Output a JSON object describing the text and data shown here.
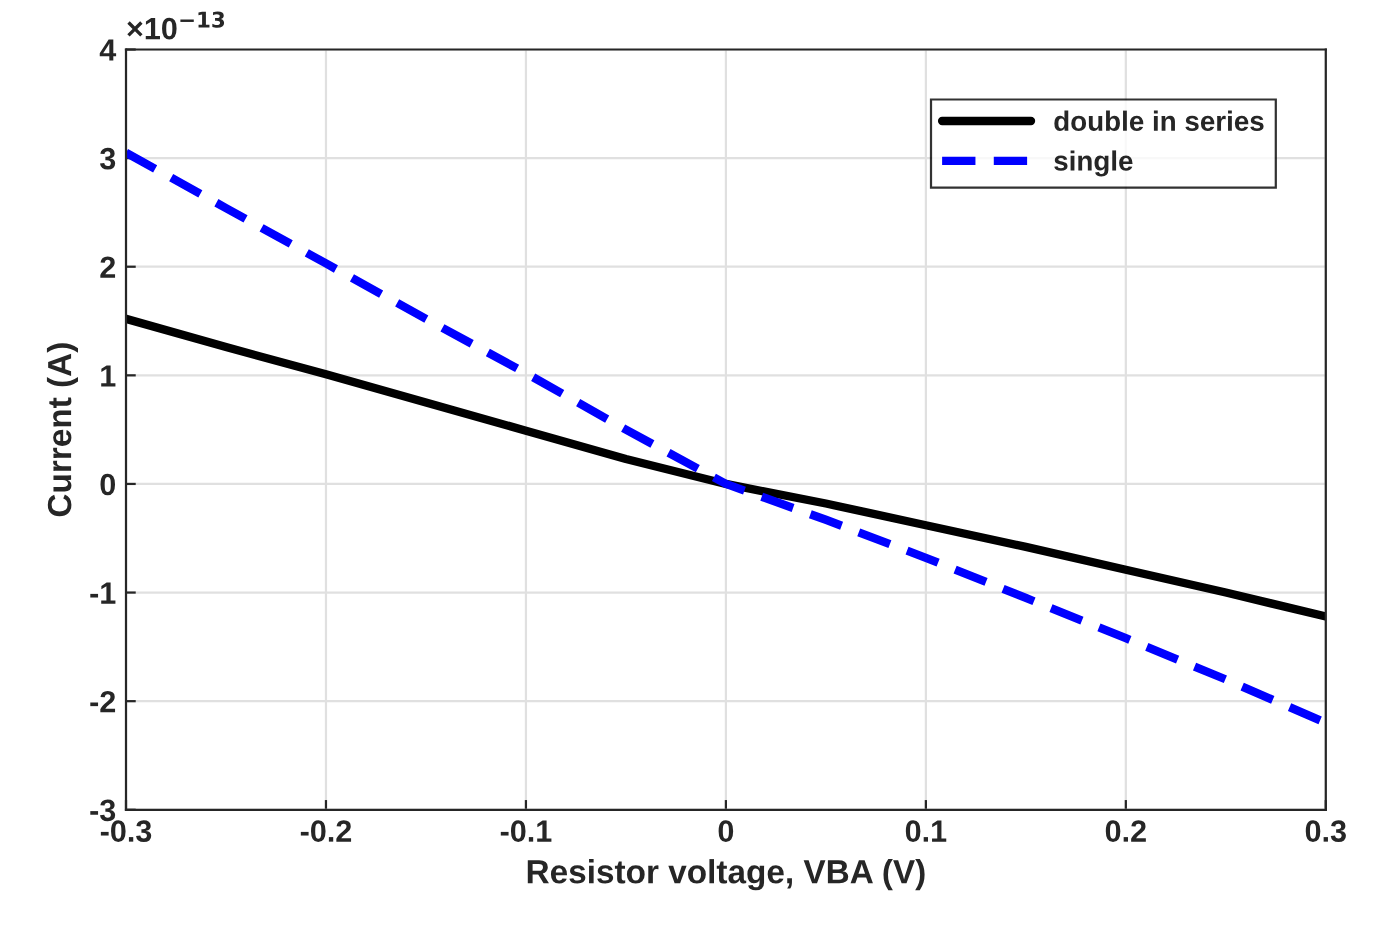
{
  "chart_data": {
    "type": "line",
    "xlabel": "Resistor voltage, VBA (V)",
    "ylabel": "Current (A)",
    "annotations": [
      "×10$^{−13}$"
    ],
    "x": [
      -0.3,
      -0.25,
      -0.2,
      -0.15,
      -0.1,
      -0.05,
      0,
      0.05,
      0.1,
      0.15,
      0.2,
      0.25,
      0.3
    ],
    "series": [
      {
        "name": "double in series",
        "color": "#000000",
        "line_style": "solid",
        "values": [
          1.52,
          1.26,
          1.01,
          0.75,
          0.49,
          0.23,
          0,
          -0.18,
          -0.38,
          -0.58,
          -0.79,
          -1.0,
          -1.22
        ]
      },
      {
        "name": "single",
        "color": "#0000ff",
        "line_style": "dashed",
        "values": [
          3.05,
          2.54,
          2.03,
          1.52,
          1.02,
          0.5,
          0,
          -0.33,
          -0.68,
          -1.05,
          -1.42,
          -1.8,
          -2.2
        ]
      }
    ],
    "xlim": [
      -0.3,
      0.3
    ],
    "xticks": [
      -0.3,
      -0.2,
      -0.1,
      0,
      0.1,
      0.2,
      0.3
    ],
    "ylim": [
      -3,
      4
    ],
    "yticks": [
      -3,
      -2,
      -1,
      0,
      1,
      2,
      3,
      4
    ],
    "grid": true,
    "legend": "top right",
    "marker": "none"
  }
}
